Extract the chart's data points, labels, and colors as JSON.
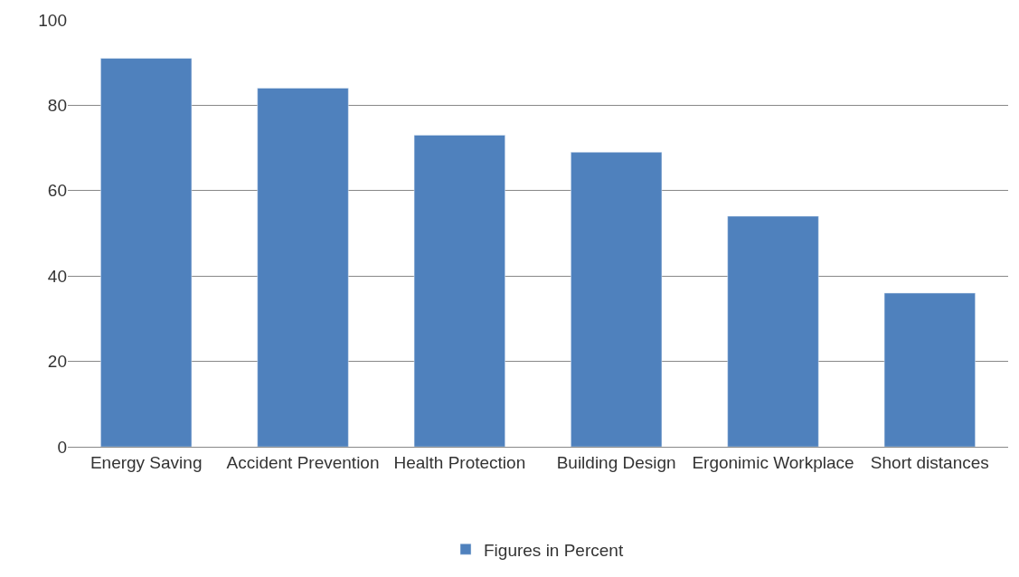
{
  "chart_data": {
    "type": "bar",
    "categories": [
      "Energy Saving",
      "Accident Prevention",
      "Health Protection",
      "Building Design",
      "Ergonimic Workplace",
      "Short distances"
    ],
    "series": [
      {
        "name": "Figures in Percent",
        "color": "#4f81bd",
        "values": [
          91,
          84,
          73,
          69,
          54,
          36
        ]
      }
    ],
    "ylim": [
      0,
      100
    ],
    "yticks": [
      0,
      20,
      40,
      60,
      80,
      100
    ],
    "grid": "y",
    "legend": "bottom"
  }
}
